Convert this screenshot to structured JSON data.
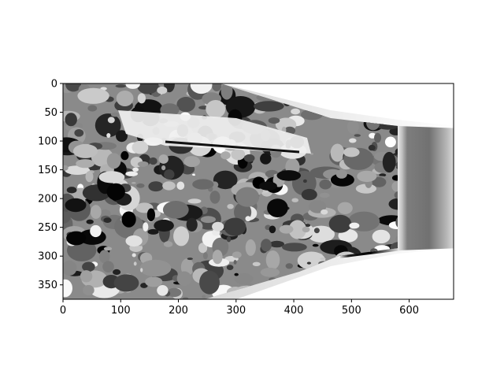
{
  "chart_data": {
    "type": "heatmap",
    "title": "",
    "xlabel": "",
    "ylabel": "",
    "colormap": "gray",
    "image_width": 677,
    "image_height": 375,
    "xlim": [
      0,
      677
    ],
    "ylim": [
      375,
      0
    ],
    "x_ticks": [
      0,
      100,
      200,
      300,
      400,
      500,
      600
    ],
    "y_ticks": [
      0,
      50,
      100,
      150,
      200,
      250,
      300,
      350
    ],
    "grid": false,
    "legend": "none"
  }
}
